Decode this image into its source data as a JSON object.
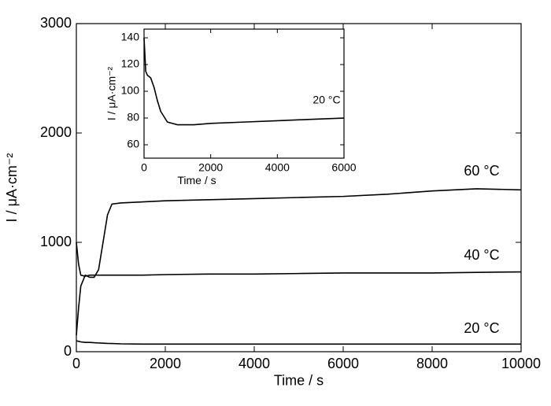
{
  "chart_data": [
    {
      "type": "line",
      "xlabel": "Time / s",
      "ylabel": "I / μA·cm⁻²",
      "x": [
        0,
        50,
        100,
        200,
        300,
        400,
        500,
        600,
        700,
        800,
        1000,
        1500,
        2000,
        3000,
        4000,
        5000,
        6000,
        7000,
        8000,
        9000,
        10000
      ],
      "series": [
        {
          "name": "60 °C",
          "color": "#000000",
          "values": [
            150,
            400,
            600,
            700,
            680,
            680,
            750,
            1000,
            1250,
            1350,
            1360,
            1370,
            1380,
            1390,
            1400,
            1410,
            1420,
            1440,
            1470,
            1490,
            1480
          ]
        },
        {
          "name": "40 °C",
          "color": "#000000",
          "values": [
            1000,
            800,
            700,
            690,
            700,
            700,
            700,
            700,
            700,
            700,
            700,
            700,
            705,
            710,
            710,
            715,
            720,
            720,
            720,
            725,
            730
          ]
        },
        {
          "name": "20 °C",
          "color": "#000000",
          "values": [
            100,
            95,
            90,
            85,
            85,
            82,
            80,
            78,
            76,
            75,
            72,
            70,
            70,
            70,
            70,
            70,
            70,
            70,
            70,
            70,
            70
          ]
        }
      ],
      "xlim": [
        0,
        10000
      ],
      "xticks": [
        0,
        2000,
        4000,
        6000,
        8000,
        10000
      ],
      "ylim": [
        0,
        3000
      ],
      "yticks": [
        0,
        1000,
        2000,
        3000
      ]
    },
    {
      "type": "line",
      "xlabel": "Time / s",
      "ylabel": "I / μA·cm⁻²",
      "x": [
        0,
        50,
        100,
        200,
        300,
        400,
        500,
        700,
        1000,
        1500,
        2000,
        3000,
        4000,
        5000,
        6000
      ],
      "series": [
        {
          "name": "20 °C",
          "color": "#000000",
          "values": [
            140,
            115,
            112,
            110,
            103,
            93,
            85,
            77,
            75,
            75,
            76,
            77,
            78,
            79,
            80
          ]
        }
      ],
      "xlim": [
        0,
        6000
      ],
      "xticks": [
        0,
        2000,
        4000,
        6000
      ],
      "ylim": [
        50,
        146.5
      ],
      "yticks": [
        60,
        80,
        100,
        120,
        140
      ]
    }
  ]
}
